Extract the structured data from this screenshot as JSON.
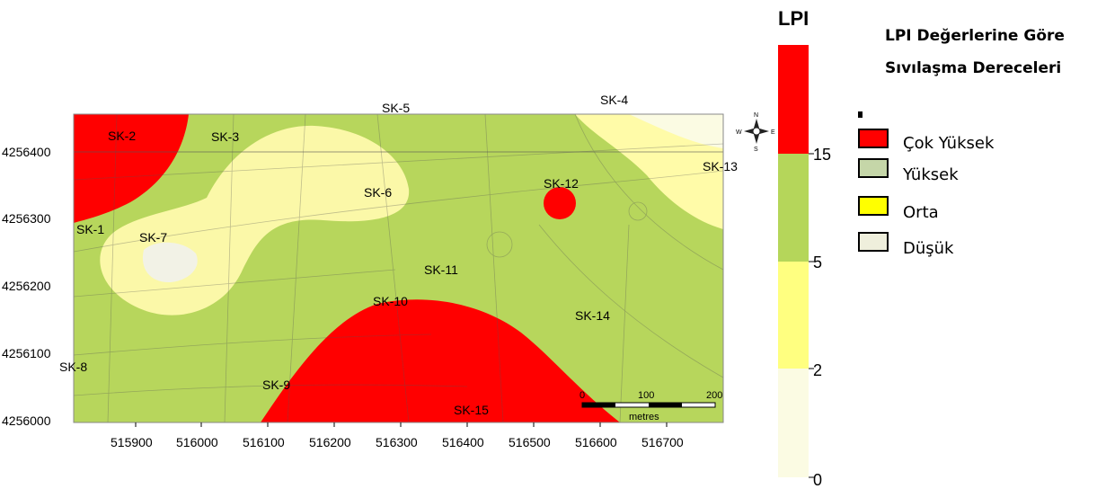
{
  "map": {
    "x_ticks": [
      "515900",
      "516000",
      "516100",
      "516200",
      "516300",
      "516400",
      "516500",
      "516600",
      "516700"
    ],
    "y_ticks": [
      "4256400",
      "4256300",
      "4256200",
      "4256100",
      "4256000"
    ],
    "wells": [
      "SK-1",
      "SK-2",
      "SK-3",
      "SK-4",
      "SK-5",
      "SK-6",
      "SK-7",
      "SK-8",
      "SK-9",
      "SK-10",
      "SK-11",
      "SK-12",
      "SK-13",
      "SK-14",
      "SK-15"
    ],
    "scale_bar": {
      "ticks": [
        "0",
        "100",
        "200"
      ],
      "unit": "metres"
    },
    "north_arrow": {
      "N": "N",
      "E": "E",
      "S": "S",
      "W": "W"
    }
  },
  "colorbar": {
    "title": "LPI",
    "ticks": [
      "15",
      "5",
      "2",
      "0"
    ],
    "colors": {
      "cok_yuksek": "#ff0000",
      "yuksek": "#b5d65a",
      "orta": "#ffff80",
      "dusuk": "#fbfbe3"
    }
  },
  "legend": {
    "title_line1": "LPI Değerlerine Göre",
    "title_line2": "Sıvılaşma Dereceleri",
    "items": [
      {
        "label": "Çok Yüksek",
        "color": "#ff0000"
      },
      {
        "label": "Yüksek",
        "color": "#c5d6a8"
      },
      {
        "label": "Orta",
        "color": "#ffff00"
      },
      {
        "label": "Düşük",
        "color": "#efefdc"
      }
    ]
  }
}
